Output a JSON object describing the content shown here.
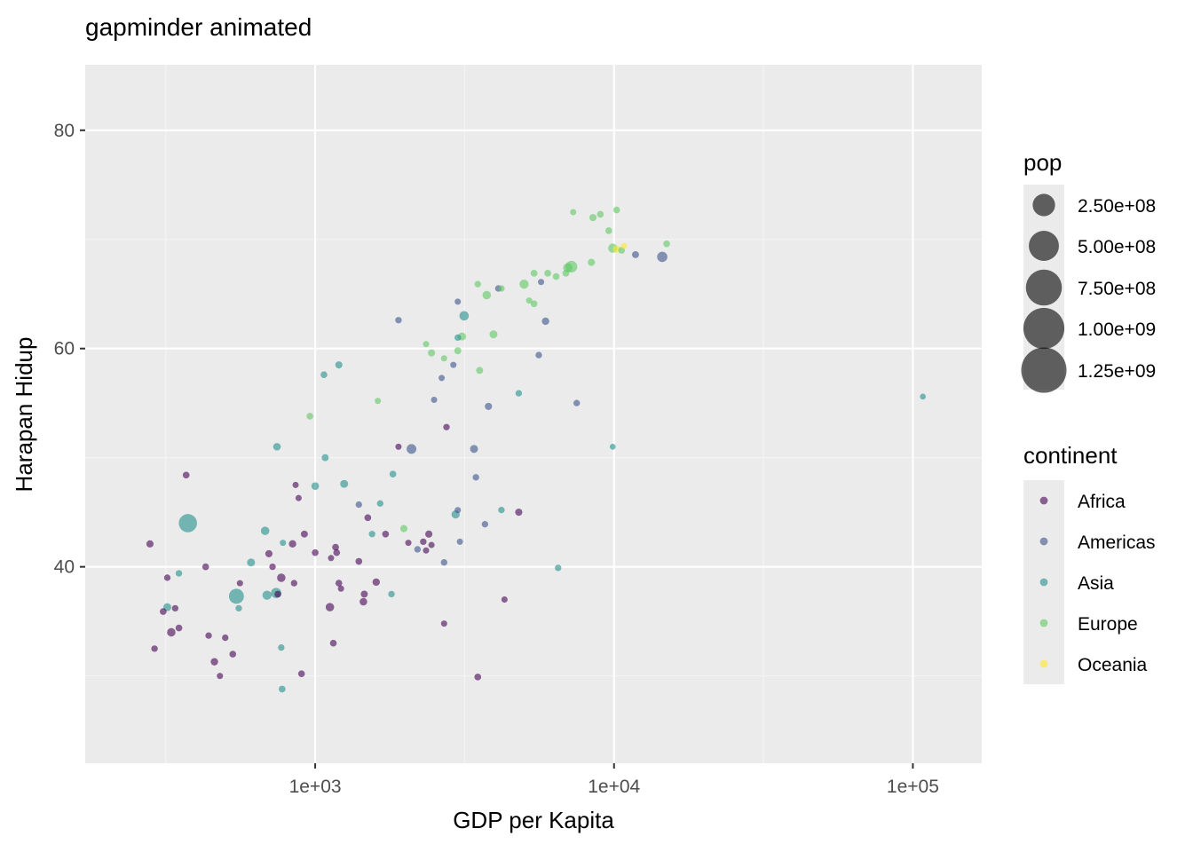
{
  "chart_data": {
    "type": "scatter",
    "title": "gapminder animated",
    "xlabel": "GDP per Kapita",
    "ylabel": "Harapan Hidup",
    "x_scale": "log10",
    "xlim": [
      170,
      170000
    ],
    "ylim": [
      22,
      86
    ],
    "x_ticks": [
      1000,
      10000,
      100000
    ],
    "x_tick_labels": [
      "1e+03",
      "1e+04",
      "1e+05"
    ],
    "y_ticks": [
      40,
      60,
      80
    ],
    "y_tick_labels": [
      "40",
      "60",
      "80"
    ],
    "grid": true,
    "legend_placement": "right",
    "size_legend": {
      "title": "pop",
      "entries": [
        {
          "label": "2.50e+08",
          "value": 250000000
        },
        {
          "label": "5.00e+08",
          "value": 500000000
        },
        {
          "label": "7.50e+08",
          "value": 750000000
        },
        {
          "label": "1.00e+09",
          "value": 1000000000
        },
        {
          "label": "1.25e+09",
          "value": 1250000000
        }
      ]
    },
    "color_legend": {
      "title": "continent",
      "entries": [
        {
          "label": "Africa",
          "color": "#440154"
        },
        {
          "label": "Americas",
          "color": "#3B528B"
        },
        {
          "label": "Asia",
          "color": "#21908C"
        },
        {
          "label": "Europe",
          "color": "#5DC863"
        },
        {
          "label": "Oceania",
          "color": "#FDE725"
        }
      ]
    },
    "series": [
      {
        "name": "Africa",
        "color": "#440154",
        "points": [
          [
            280,
            42.1,
            8000000
          ],
          [
            290,
            32.5,
            5000000
          ],
          [
            310,
            35.9,
            6000000
          ],
          [
            320,
            39,
            5000000
          ],
          [
            330,
            34,
            15000000
          ],
          [
            340,
            36.2,
            5000000
          ],
          [
            350,
            34.4,
            6000000
          ],
          [
            370,
            48.4,
            6000000
          ],
          [
            430,
            40,
            6000000
          ],
          [
            440,
            33.7,
            5000000
          ],
          [
            460,
            31.3,
            9000000
          ],
          [
            480,
            30,
            4000000
          ],
          [
            500,
            33.5,
            5000000
          ],
          [
            530,
            32,
            6000000
          ],
          [
            560,
            38.5,
            4000000
          ],
          [
            700,
            41.2,
            8000000
          ],
          [
            720,
            40,
            5000000
          ],
          [
            750,
            37.5,
            6000000
          ],
          [
            770,
            39,
            15000000
          ],
          [
            840,
            42.1,
            9000000
          ],
          [
            850,
            38.5,
            5000000
          ],
          [
            860,
            47.5,
            4000000
          ],
          [
            880,
            46.3,
            4000000
          ],
          [
            900,
            30.2,
            6000000
          ],
          [
            920,
            43,
            7000000
          ],
          [
            1000,
            41.3,
            6000000
          ],
          [
            1120,
            36.3,
            15000000
          ],
          [
            1130,
            40.8,
            4000000
          ],
          [
            1150,
            33,
            6000000
          ],
          [
            1170,
            41.8,
            6000000
          ],
          [
            1180,
            41.3,
            6000000
          ],
          [
            1200,
            38.5,
            6000000
          ],
          [
            1220,
            38,
            4000000
          ],
          [
            1400,
            40.5,
            6000000
          ],
          [
            1450,
            36.8,
            10000000
          ],
          [
            1460,
            37.5,
            7000000
          ],
          [
            1500,
            44.5,
            6000000
          ],
          [
            1600,
            38.6,
            9000000
          ],
          [
            1720,
            43,
            6000000
          ],
          [
            1900,
            51,
            4000000
          ],
          [
            2050,
            42.2,
            4000000
          ],
          [
            2300,
            42.3,
            5000000
          ],
          [
            2350,
            41.5,
            4000000
          ],
          [
            2400,
            43,
            8000000
          ],
          [
            2450,
            42,
            4000000
          ],
          [
            2700,
            34.8,
            4000000
          ],
          [
            2750,
            52.8,
            5000000
          ],
          [
            3500,
            29.9,
            6000000
          ],
          [
            4300,
            37,
            4000000
          ],
          [
            4800,
            45,
            8000000
          ]
        ]
      },
      {
        "name": "Americas",
        "color": "#3B528B",
        "points": [
          [
            1400,
            45.7,
            5000000
          ],
          [
            1900,
            62.6,
            5000000
          ],
          [
            2100,
            50.8,
            25000000
          ],
          [
            2200,
            41.6,
            5000000
          ],
          [
            2500,
            55.3,
            4000000
          ],
          [
            2650,
            57.3,
            4000000
          ],
          [
            2700,
            40.4,
            5000000
          ],
          [
            2900,
            58.5,
            4000000
          ],
          [
            3000,
            64.3,
            4000000
          ],
          [
            3000,
            45.2,
            4000000
          ],
          [
            3050,
            42.3,
            4000000
          ],
          [
            3400,
            50.8,
            12000000
          ],
          [
            3450,
            48.2,
            5000000
          ],
          [
            3700,
            43.9,
            5000000
          ],
          [
            3800,
            54.7,
            8000000
          ],
          [
            4100,
            65.5,
            5000000
          ],
          [
            5600,
            59.4,
            5000000
          ],
          [
            5700,
            66.1,
            4000000
          ],
          [
            5900,
            62.5,
            9000000
          ],
          [
            7500,
            55,
            5000000
          ],
          [
            11800,
            68.6,
            7000000
          ],
          [
            14500,
            68.4,
            30000000
          ]
        ]
      },
      {
        "name": "Asia",
        "color": "#21908C",
        "points": [
          [
            320,
            36.3,
            12000000
          ],
          [
            350,
            39.4,
            5000000
          ],
          [
            375,
            44,
            150000000
          ],
          [
            545,
            37.3,
            90000000
          ],
          [
            555,
            36.2,
            5000000
          ],
          [
            610,
            40.4,
            12000000
          ],
          [
            680,
            43.3,
            15000000
          ],
          [
            690,
            37.4,
            20000000
          ],
          [
            740,
            37.6,
            30000000
          ],
          [
            745,
            51,
            10000000
          ],
          [
            770,
            32.6,
            5000000
          ],
          [
            775,
            28.8,
            6000000
          ],
          [
            780,
            42.2,
            4000000
          ],
          [
            1000,
            47.4,
            10000000
          ],
          [
            1070,
            57.6,
            6000000
          ],
          [
            1080,
            50,
            7000000
          ],
          [
            1200,
            58.5,
            8000000
          ],
          [
            1250,
            47.6,
            12000000
          ],
          [
            1550,
            43,
            5000000
          ],
          [
            1650,
            45.8,
            5000000
          ],
          [
            1800,
            37.5,
            5000000
          ],
          [
            1820,
            48.5,
            6000000
          ],
          [
            2950,
            44.8,
            14000000
          ],
          [
            3000,
            61,
            5000000
          ],
          [
            3150,
            63,
            22000000
          ],
          [
            4200,
            45.2,
            5000000
          ],
          [
            4800,
            55.9,
            5000000
          ],
          [
            6500,
            39.9,
            5000000
          ],
          [
            9900,
            51,
            3000000
          ],
          [
            108000,
            55.6,
            3000000
          ]
        ]
      },
      {
        "name": "Europe",
        "color": "#5DC863",
        "points": [
          [
            960,
            53.8,
            6000000
          ],
          [
            1620,
            55.2,
            4000000
          ],
          [
            1980,
            43.5,
            8000000
          ],
          [
            2350,
            60.4,
            4000000
          ],
          [
            2450,
            59.6,
            8000000
          ],
          [
            2700,
            59.1,
            4000000
          ],
          [
            3000,
            59.8,
            7000000
          ],
          [
            3100,
            61.1,
            12000000
          ],
          [
            3500,
            65.9,
            5000000
          ],
          [
            3550,
            58,
            7000000
          ],
          [
            3750,
            64.9,
            15000000
          ],
          [
            3950,
            61.3,
            12000000
          ],
          [
            4200,
            65.5,
            5000000
          ],
          [
            5000,
            65.9,
            20000000
          ],
          [
            5200,
            64.4,
            4000000
          ],
          [
            5400,
            66.9,
            6000000
          ],
          [
            5400,
            64.1,
            6000000
          ],
          [
            6000,
            66.9,
            6000000
          ],
          [
            6400,
            66.6,
            6000000
          ],
          [
            6900,
            66.9,
            6000000
          ],
          [
            7000,
            67.4,
            20000000
          ],
          [
            7200,
            67.5,
            45000000
          ],
          [
            7300,
            72.5,
            4000000
          ],
          [
            8400,
            67.9,
            8000000
          ],
          [
            8500,
            72,
            8000000
          ],
          [
            9000,
            72.3,
            6000000
          ],
          [
            9600,
            70.8,
            6000000
          ],
          [
            9900,
            69.2,
            20000000
          ],
          [
            10200,
            72.7,
            6000000
          ],
          [
            10600,
            69,
            6000000
          ],
          [
            15000,
            69.6,
            6000000
          ]
        ]
      },
      {
        "name": "Oceania",
        "color": "#FDE725",
        "points": [
          [
            10200,
            69.1,
            8000000
          ],
          [
            10800,
            69.4,
            4000000
          ]
        ]
      }
    ]
  }
}
